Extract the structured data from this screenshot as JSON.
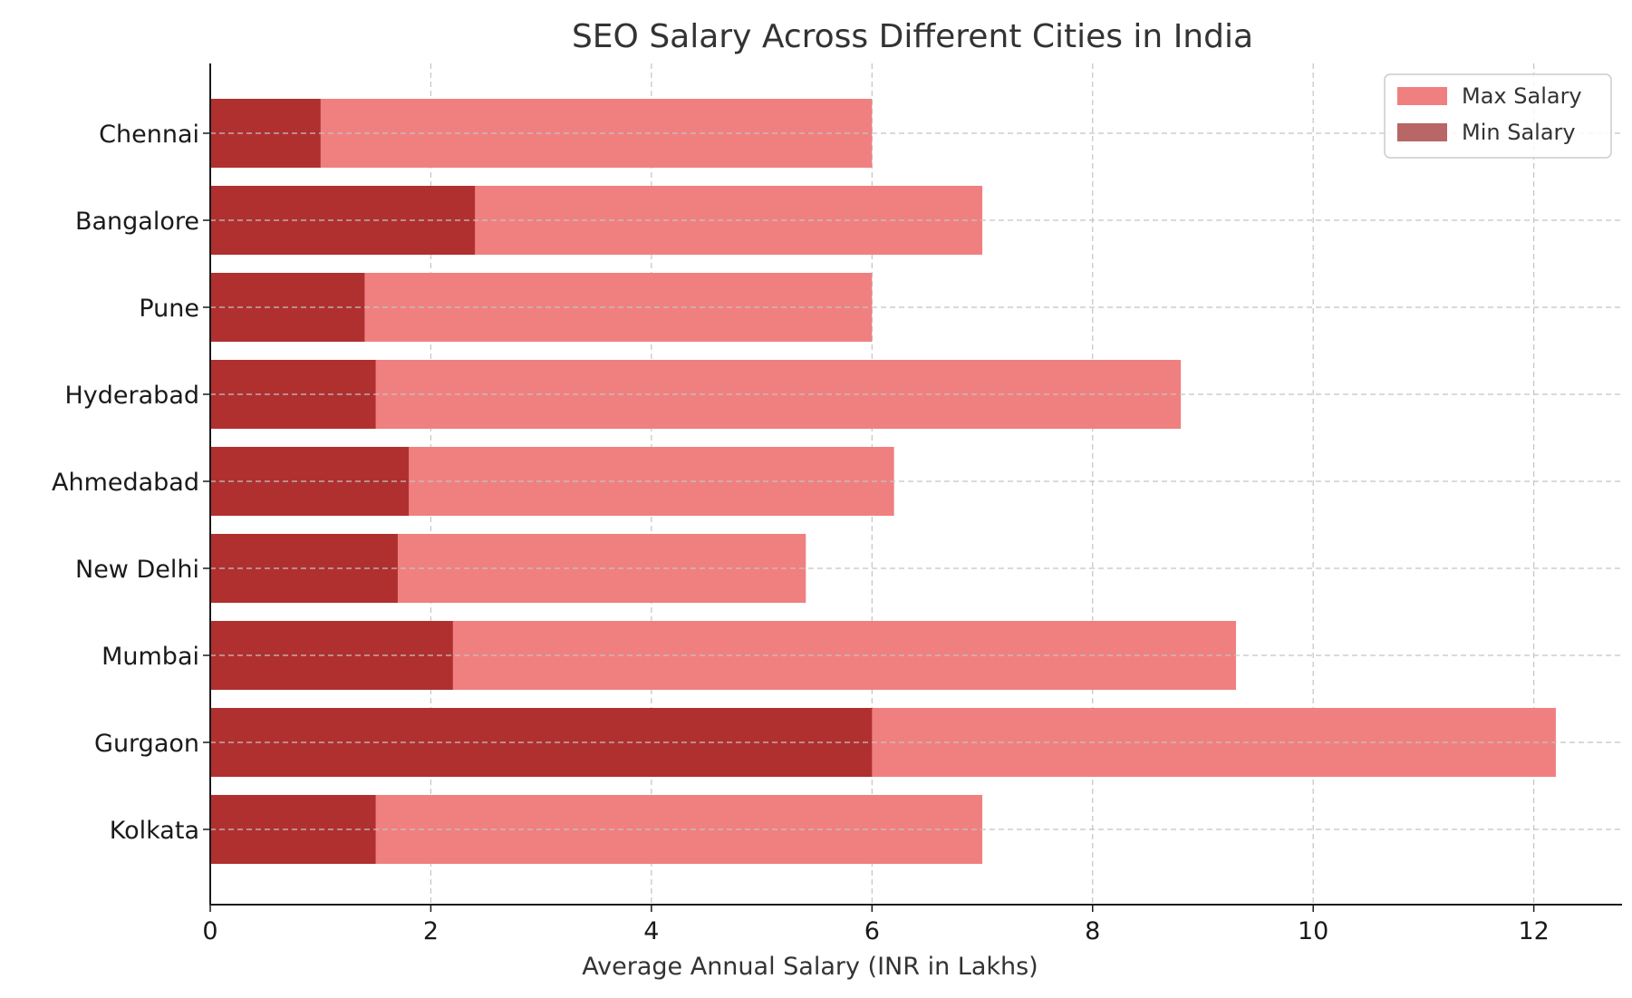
{
  "chart_data": {
    "type": "bar",
    "orientation": "horizontal",
    "stacked": false,
    "title": "SEO Salary Across Different Cities in India",
    "xlabel": "Average Annual Salary (INR in Lakhs)",
    "ylabel": "",
    "xlim": [
      0,
      12.8
    ],
    "xticks": [
      0,
      2,
      4,
      6,
      8,
      10,
      12
    ],
    "grid": true,
    "legend_position": "top-right",
    "categories": [
      "Kolkata",
      "Gurgaon",
      "Mumbai",
      "New Delhi",
      "Ahmedabad",
      "Hyderabad",
      "Pune",
      "Bangalore",
      "Chennai"
    ],
    "series": [
      {
        "name": "Max Salary",
        "color": "#f08080",
        "values": [
          7.0,
          12.2,
          9.3,
          5.4,
          6.2,
          8.8,
          6.0,
          7.0,
          6.0
        ]
      },
      {
        "name": "Min Salary",
        "color": "#b03030",
        "legend_color": "#b86666",
        "values": [
          1.5,
          6.0,
          2.2,
          1.7,
          1.8,
          1.5,
          1.4,
          2.4,
          1.0
        ]
      }
    ]
  }
}
